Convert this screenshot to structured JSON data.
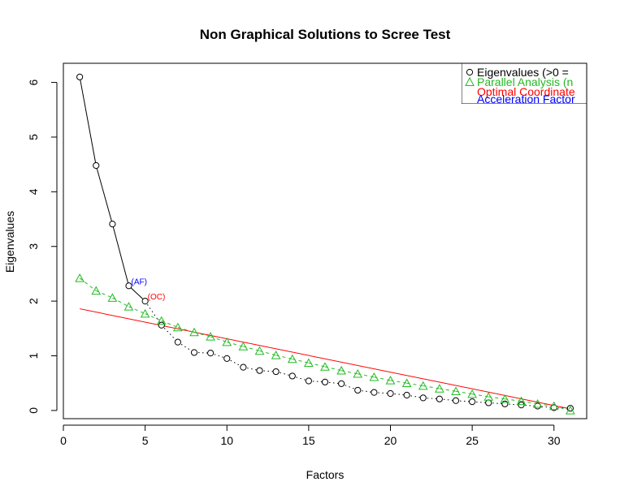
{
  "chart_data": {
    "type": "scatter",
    "title": "Non Graphical Solutions to Scree Test",
    "xlabel": "Factors",
    "ylabel": "Eigenvalues",
    "xlim": [
      0,
      32
    ],
    "ylim": [
      -0.15,
      6.35
    ],
    "xticks": [
      0,
      5,
      10,
      15,
      20,
      25,
      30
    ],
    "yticks": [
      0,
      1,
      2,
      3,
      4,
      5,
      6
    ],
    "grid": false,
    "legend_position": "top-right",
    "legend": [
      {
        "text": "Eigenvalues (>0 =",
        "color": "#000000",
        "marker": "circle"
      },
      {
        "text": "Parallel Analysis (n",
        "color": "#22bb22",
        "marker": "triangle"
      },
      {
        "text": "Optimal Coordinate",
        "color": "#ff0000",
        "marker": "none"
      },
      {
        "text": "Acceleration Factor",
        "color": "#0000ff",
        "marker": "none"
      }
    ],
    "series": [
      {
        "color": "#000000",
        "marker": "circle",
        "solid_until_index": 4,
        "x": [
          1,
          2,
          3,
          4,
          5,
          6,
          7,
          8,
          9,
          10,
          11,
          12,
          13,
          14,
          15,
          16,
          17,
          18,
          19,
          20,
          21,
          22,
          23,
          24,
          25,
          26,
          27,
          28,
          29,
          30,
          31
        ],
        "values": [
          6.1,
          4.48,
          3.41,
          2.28,
          2.0,
          1.56,
          1.25,
          1.06,
          1.05,
          0.95,
          0.79,
          0.73,
          0.71,
          0.63,
          0.54,
          0.52,
          0.49,
          0.37,
          0.33,
          0.31,
          0.28,
          0.23,
          0.21,
          0.18,
          0.16,
          0.14,
          0.12,
          0.1,
          0.08,
          0.05,
          0.04
        ]
      },
      {
        "color": "#22bb22",
        "marker": "triangle",
        "x": [
          1,
          2,
          3,
          4,
          5,
          6,
          7,
          8,
          9,
          10,
          11,
          12,
          13,
          14,
          15,
          16,
          17,
          18,
          19,
          20,
          21,
          22,
          23,
          24,
          25,
          26,
          27,
          28,
          29,
          30,
          31
        ],
        "values": [
          2.42,
          2.19,
          2.06,
          1.9,
          1.77,
          1.64,
          1.52,
          1.43,
          1.35,
          1.25,
          1.17,
          1.09,
          1.01,
          0.94,
          0.87,
          0.8,
          0.73,
          0.67,
          0.61,
          0.55,
          0.5,
          0.45,
          0.4,
          0.35,
          0.3,
          0.25,
          0.21,
          0.17,
          0.12,
          0.08,
          0.0
        ]
      }
    ],
    "oc_line": {
      "color": "#ff0000",
      "x": [
        1,
        31
      ],
      "y": [
        1.86,
        0.03
      ]
    },
    "annotations": [
      {
        "text": "(AF)",
        "x": 4,
        "y": 2.28,
        "color": "#0000ff"
      },
      {
        "text": "(OC)",
        "x": 5,
        "y": 2.0,
        "color": "#ff0000"
      }
    ]
  }
}
